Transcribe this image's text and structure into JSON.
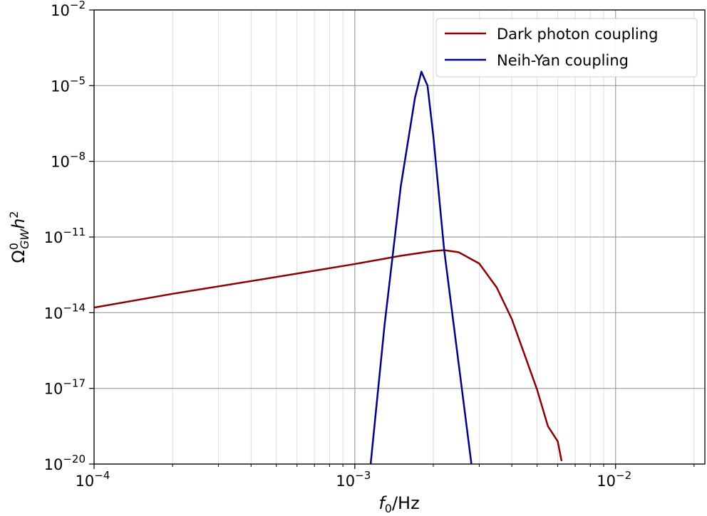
{
  "chart_data": {
    "type": "line",
    "title": "",
    "xlabel": "f_0/Hz",
    "ylabel": "Ω_GW^0 h^2",
    "x_scale": "log",
    "y_scale": "log",
    "xlim": [
      0.0001,
      0.022
    ],
    "ylim": [
      1e-20,
      0.01
    ],
    "grid": true,
    "legend_position": "top-right",
    "x_ticks": [
      {
        "value": 0.0001,
        "base": "10",
        "exp": "−4"
      },
      {
        "value": 0.001,
        "base": "10",
        "exp": "−3"
      },
      {
        "value": 0.01,
        "base": "10",
        "exp": "−2"
      }
    ],
    "y_ticks": [
      {
        "value": 1e-20,
        "base": "10",
        "exp": "−20"
      },
      {
        "value": 1e-17,
        "base": "10",
        "exp": "−17"
      },
      {
        "value": 1e-14,
        "base": "10",
        "exp": "−14"
      },
      {
        "value": 1e-11,
        "base": "10",
        "exp": "−11"
      },
      {
        "value": 1e-08,
        "base": "10",
        "exp": "−8"
      },
      {
        "value": 1e-05,
        "base": "10",
        "exp": "−5"
      },
      {
        "value": 0.01,
        "base": "10",
        "exp": "−2"
      }
    ],
    "series": [
      {
        "name": "Dark photon coupling",
        "color": "#8b0000",
        "x": [
          0.0001,
          0.0002,
          0.0005,
          0.001,
          0.0015,
          0.002,
          0.0022,
          0.0025,
          0.003,
          0.0035,
          0.004,
          0.005,
          0.0055,
          0.006,
          0.0062
        ],
        "y": [
          1.6e-14,
          5.6e-14,
          2.6e-13,
          8.5e-13,
          1.8e-12,
          2.8e-12,
          3e-12,
          2.5e-12,
          8.9e-13,
          1e-13,
          5.6e-15,
          8.9e-18,
          3.2e-19,
          7.9e-20,
          1.4e-20
        ]
      },
      {
        "name": "Neih-Yan coupling",
        "color": "#00008b",
        "x": [
          0.00115,
          0.0013,
          0.0015,
          0.0017,
          0.0018,
          0.0019,
          0.002,
          0.0022,
          0.0025,
          0.0028
        ],
        "y": [
          1e-20,
          3.2e-15,
          1e-09,
          3.2e-06,
          3.6e-05,
          1e-05,
          1e-07,
          3.2e-12,
          1e-16,
          1e-20
        ]
      }
    ]
  }
}
